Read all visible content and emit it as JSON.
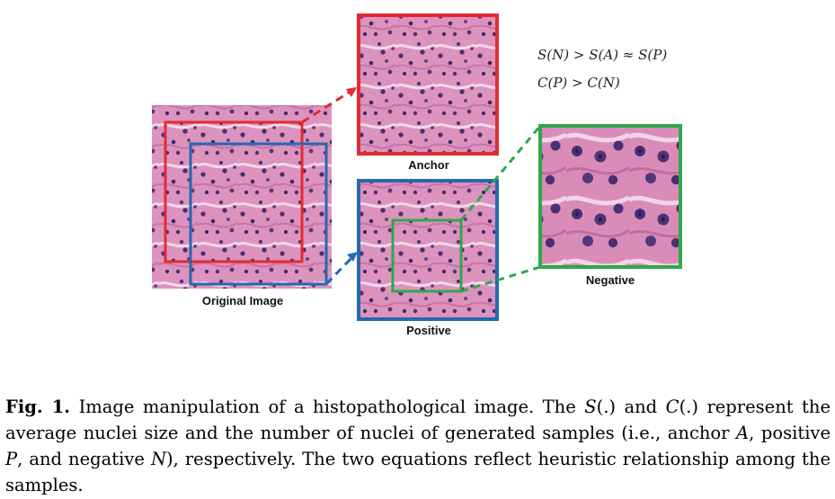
{
  "figure": {
    "labels": {
      "original": "Original Image",
      "anchor": "Anchor",
      "positive": "Positive",
      "negative": "Negative"
    },
    "equations": [
      "S(N) > S(A) ≈ S(P)",
      "C(P) > C(N)"
    ],
    "colors": {
      "red": "#e32b31",
      "blue": "#2469b1",
      "green": "#2ea84a",
      "tissue": "#d98fb8",
      "nuclei": "#4a2f72"
    }
  },
  "caption": {
    "label": "Fig. 1.",
    "part1": " Image manipulation of a histopathological image. The ",
    "s": "S",
    "part2": "(.) and ",
    "c": "C",
    "part3": "(.) represent the average nuclei size and the number of nuclei of generated samples (i.e., anchor ",
    "a": "A",
    "part4": ", positive ",
    "p": "P",
    "part5": ", and negative ",
    "n": "N",
    "part6": "), respectively. The two equations reflect heuristic relationship among the samples."
  }
}
